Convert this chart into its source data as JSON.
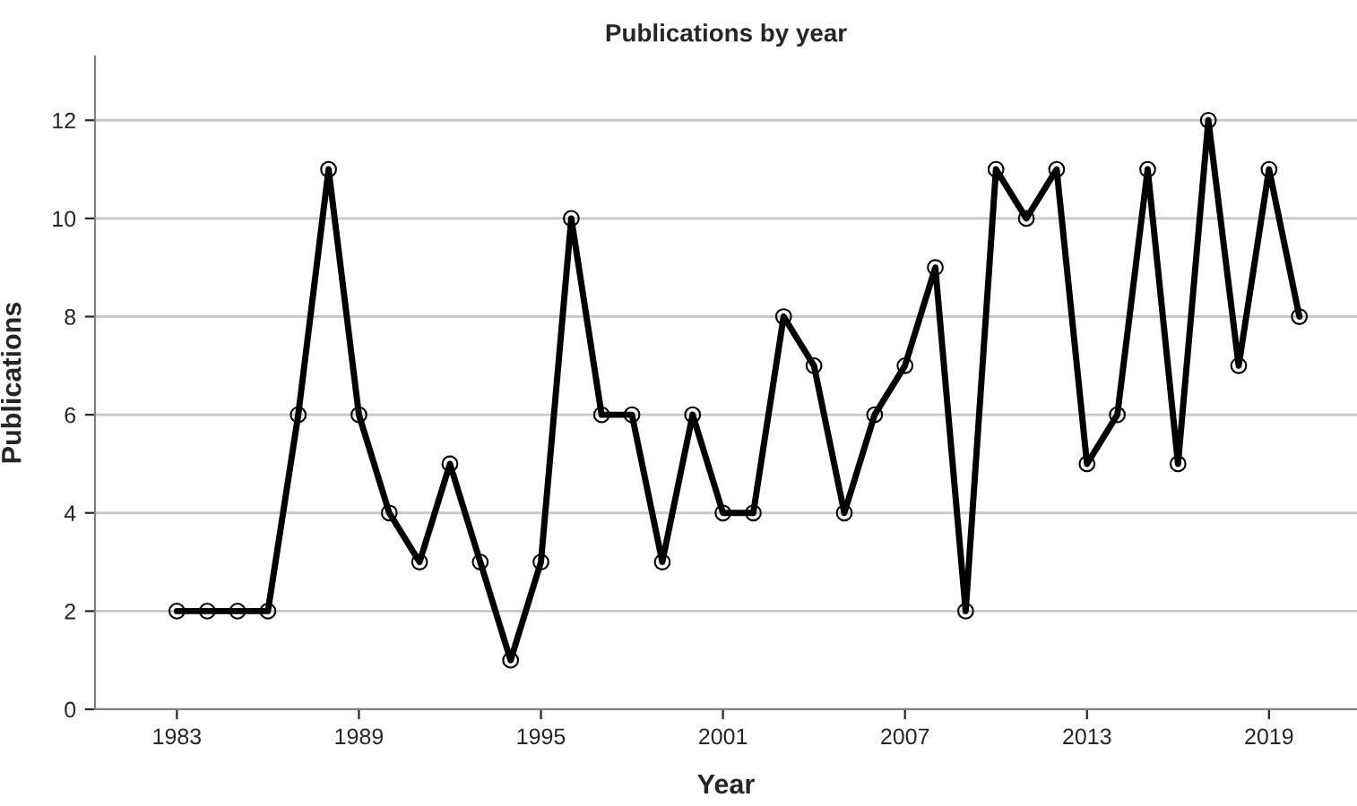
{
  "chart_data": {
    "type": "line",
    "title": "Publications by year",
    "xlabel": "Year",
    "ylabel": "Publications",
    "x": [
      1983,
      1984,
      1985,
      1986,
      1987,
      1988,
      1989,
      1990,
      1991,
      1992,
      1993,
      1994,
      1995,
      1996,
      1997,
      1998,
      1999,
      2000,
      2001,
      2002,
      2003,
      2004,
      2005,
      2006,
      2007,
      2008,
      2009,
      2010,
      2011,
      2012,
      2013,
      2014,
      2015,
      2016,
      2017,
      2018,
      2019,
      2020
    ],
    "series": [
      {
        "color": "#000000",
        "values": [
          2,
          2,
          2,
          2,
          6,
          11,
          6,
          4,
          3,
          5,
          3,
          1,
          3,
          10,
          6,
          6,
          3,
          6,
          4,
          4,
          8,
          7,
          4,
          6,
          7,
          9,
          2,
          11,
          10,
          11,
          5,
          6,
          11,
          5,
          12,
          7,
          11,
          8
        ]
      }
    ],
    "xlim": [
      1980.3,
      2021.9
    ],
    "xticks": [
      1983,
      1989,
      1995,
      2001,
      2007,
      2013,
      2019
    ],
    "ylim": [
      0,
      13.3
    ],
    "yticks": [
      0,
      2,
      4,
      6,
      8,
      10,
      12
    ],
    "grid": "y",
    "marker": "circle",
    "line_style": "solid",
    "legend": false
  }
}
